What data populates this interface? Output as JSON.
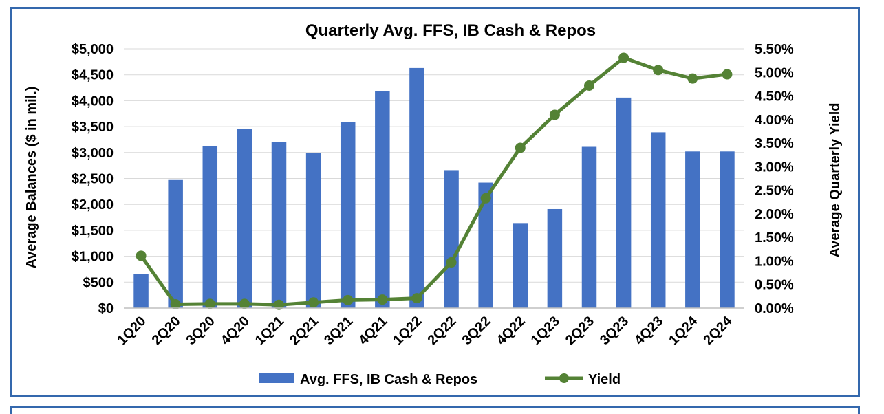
{
  "chart_data": {
    "type": "bar",
    "title": "Quarterly Avg. FFS, IB Cash & Repos",
    "categories": [
      "1Q20",
      "2Q20",
      "3Q20",
      "4Q20",
      "1Q21",
      "2Q21",
      "3Q21",
      "4Q21",
      "1Q22",
      "2Q22",
      "3Q22",
      "4Q22",
      "1Q23",
      "2Q23",
      "3Q23",
      "4Q23",
      "1Q24",
      "2Q24"
    ],
    "ylabel": "Average Balances ($ in mil.)",
    "y2label": "Average Quarterly Yield",
    "ylim": [
      0,
      5000
    ],
    "y2lim": [
      0,
      5.5
    ],
    "yticks": [
      "$0",
      "$500",
      "$1,000",
      "$1,500",
      "$2,000",
      "$2,500",
      "$3,000",
      "$3,500",
      "$4,000",
      "$4,500",
      "$5,000"
    ],
    "y2ticks": [
      "0.00%",
      "0.50%",
      "1.00%",
      "1.50%",
      "2.00%",
      "2.50%",
      "3.00%",
      "3.50%",
      "4.00%",
      "4.50%",
      "5.00%",
      "5.50%"
    ],
    "grid": true,
    "legend_position": "bottom",
    "series": [
      {
        "name": "Avg. FFS, IB Cash & Repos",
        "kind": "bar",
        "axis": "left",
        "color": "#4472c4",
        "values": [
          650,
          2470,
          3130,
          3460,
          3200,
          2990,
          3590,
          4190,
          4630,
          2660,
          2420,
          1640,
          1910,
          3110,
          4060,
          3390,
          3020,
          3020
        ]
      },
      {
        "name": "Yield",
        "kind": "line",
        "axis": "right",
        "color": "#548235",
        "values": [
          1.11,
          0.08,
          0.09,
          0.09,
          0.07,
          0.12,
          0.17,
          0.18,
          0.21,
          0.97,
          2.33,
          3.4,
          4.1,
          4.72,
          5.31,
          5.05,
          4.87,
          4.96
        ]
      }
    ]
  }
}
